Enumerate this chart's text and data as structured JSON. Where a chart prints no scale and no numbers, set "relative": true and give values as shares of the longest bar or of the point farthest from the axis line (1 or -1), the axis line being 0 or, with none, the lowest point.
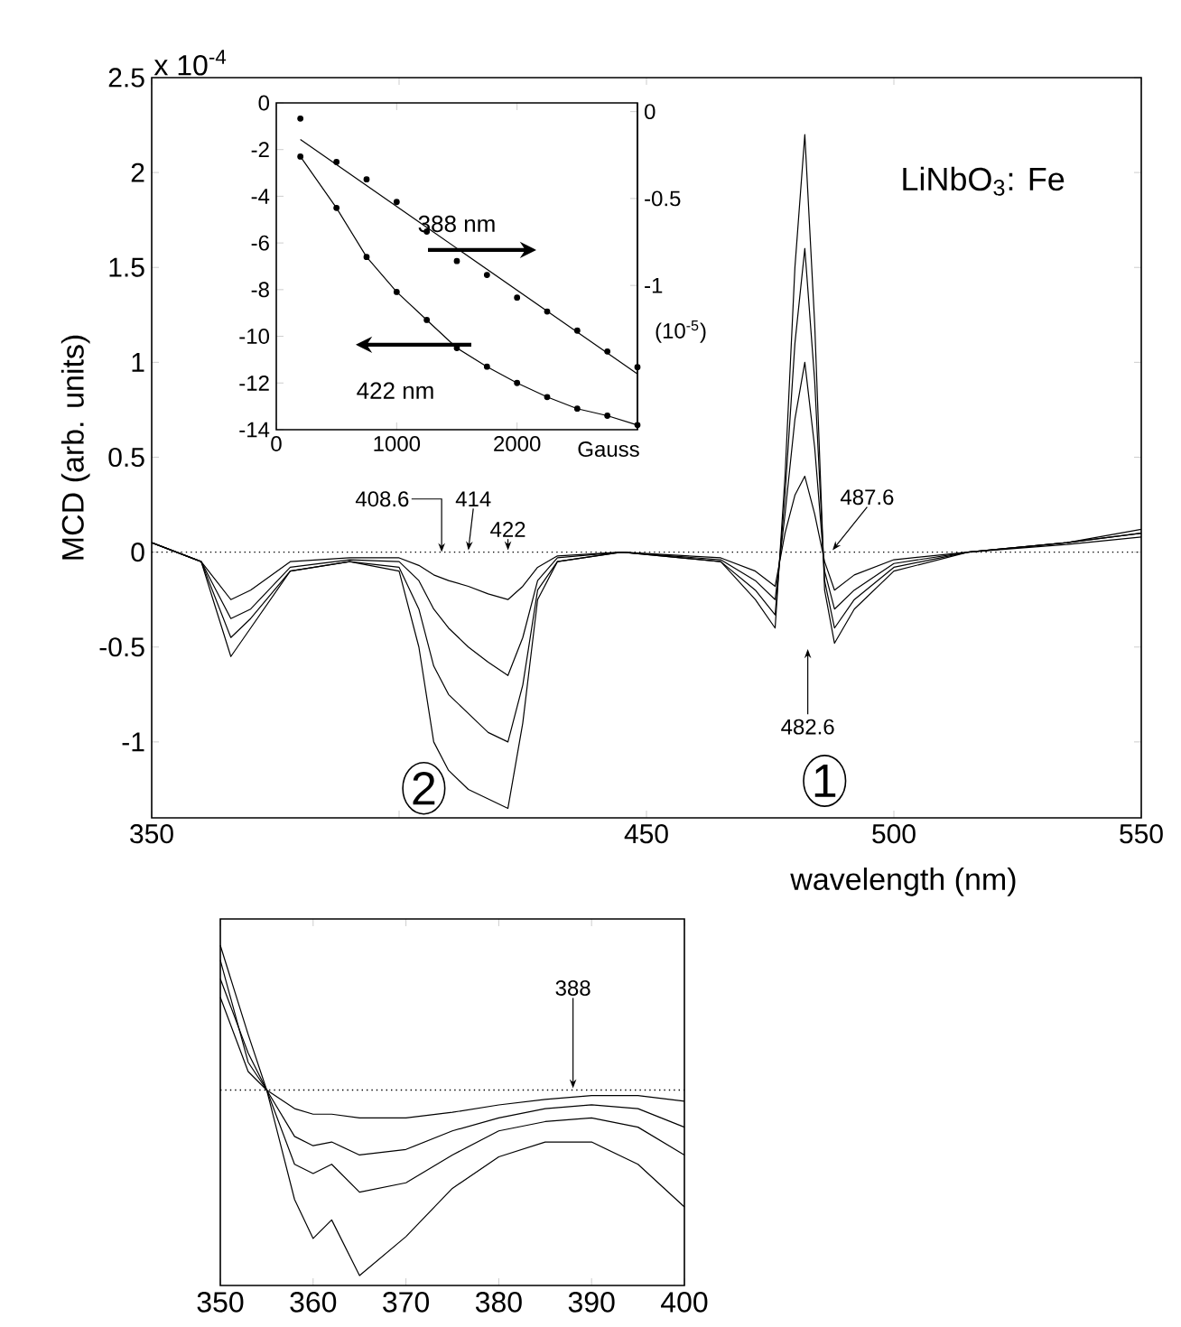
{
  "chart_data": [
    {
      "type": "line",
      "xlabel": "wavelength (nm)",
      "ylabel": "MCD (arb. units)",
      "xlim": [
        350,
        550
      ],
      "xticks": [
        350,
        {
          "value": 400,
          "label": null
        },
        450,
        500,
        550
      ],
      "ylim": [
        -1.4,
        2.5
      ],
      "yticks": [
        -1,
        -0.5,
        0,
        0.5,
        1,
        1.5,
        2,
        2.5
      ],
      "x": [
        350,
        355,
        360,
        363,
        366,
        370,
        378,
        390,
        400,
        404,
        407,
        410,
        414,
        418,
        422,
        425,
        428,
        432,
        445,
        465,
        472,
        476,
        478,
        480,
        482,
        484,
        486,
        488,
        492,
        500,
        515,
        535,
        550
      ],
      "series": [
        {
          "color": "#000000",
          "values": [
            0.05,
            0,
            -0.05,
            -0.3,
            -0.55,
            -0.4,
            -0.1,
            -0.05,
            -0.1,
            -0.5,
            -1.0,
            -1.15,
            -1.25,
            -1.3,
            -1.35,
            -0.9,
            -0.25,
            -0.05,
            0,
            -0.05,
            -0.25,
            -0.4,
            0.4,
            1.5,
            2.2,
            1.2,
            -0.2,
            -0.48,
            -0.3,
            -0.1,
            0,
            0.05,
            0.12
          ]
        },
        {
          "color": "#000000",
          "values": [
            0.05,
            0,
            -0.05,
            -0.25,
            -0.45,
            -0.35,
            -0.1,
            -0.05,
            -0.08,
            -0.3,
            -0.6,
            -0.75,
            -0.85,
            -0.95,
            -1.0,
            -0.7,
            -0.2,
            -0.05,
            0,
            -0.05,
            -0.2,
            -0.33,
            0.3,
            1.1,
            1.6,
            0.9,
            -0.15,
            -0.4,
            -0.25,
            -0.08,
            0,
            0.05,
            0.1
          ]
        },
        {
          "color": "#000000",
          "values": [
            0.05,
            0,
            -0.05,
            -0.2,
            -0.35,
            -0.3,
            -0.08,
            -0.04,
            -0.05,
            -0.15,
            -0.3,
            -0.4,
            -0.5,
            -0.58,
            -0.65,
            -0.45,
            -0.15,
            -0.03,
            0,
            -0.04,
            -0.15,
            -0.25,
            0.2,
            0.7,
            1.0,
            0.55,
            -0.1,
            -0.3,
            -0.2,
            -0.06,
            0,
            0.05,
            0.1
          ]
        },
        {
          "color": "#000000",
          "values": [
            0.05,
            0,
            -0.05,
            -0.15,
            -0.25,
            -0.2,
            -0.05,
            -0.03,
            -0.03,
            -0.07,
            -0.12,
            -0.15,
            -0.18,
            -0.22,
            -0.25,
            -0.18,
            -0.08,
            -0.02,
            0,
            -0.03,
            -0.1,
            -0.18,
            0.1,
            0.3,
            0.4,
            0.2,
            -0.05,
            -0.2,
            -0.12,
            -0.04,
            0,
            0.04,
            0.08
          ]
        }
      ],
      "ref_lines": [
        {
          "axis": "y",
          "value": 0,
          "line_style": "dotted",
          "color": "#000000"
        }
      ],
      "annotations": [
        "x 10$^{-4}$",
        "LiNbO$_{3}$: Fe",
        "2",
        "1",
        {
          "text": "408.6",
          "x": 408.6,
          "y": 0
        },
        {
          "text": "414",
          "x": 414,
          "y": 0
        },
        {
          "text": "422",
          "x": 422,
          "y": 0
        },
        {
          "text": "487.6",
          "x": 487.6,
          "y": 0
        },
        "482.6"
      ]
    },
    {
      "type": "line",
      "xlabel": "Gauss",
      "y2label": "(10$^{-5}$)",
      "xlim": [
        0,
        3000
      ],
      "xticks": [
        0,
        1000,
        2000
      ],
      "ylim": [
        -14,
        0
      ],
      "yticks": [
        0,
        -2,
        -4,
        -6,
        -8,
        -10,
        -12,
        -14
      ],
      "y2lim": [
        -1.83,
        0.05
      ],
      "y2ticks": [
        0,
        -0.5,
        -1
      ],
      "x": [
        200,
        500,
        750,
        1000,
        1250,
        1500,
        1750,
        2000,
        2250,
        2500,
        2750,
        3000
      ],
      "series": [
        {
          "type": "scatter",
          "axis": "y2",
          "marker": "circle",
          "color": "#000000",
          "values": [
            -0.04,
            -0.29,
            -0.39,
            -0.52,
            -0.69,
            -0.86,
            -0.94,
            -1.07,
            -1.15,
            -1.26,
            -1.38,
            -1.47
          ]
        },
        {
          "type": "line",
          "axis": "y2",
          "color": "#000000",
          "x": [
            200,
            3000
          ],
          "values": [
            -0.16,
            -1.51
          ]
        },
        {
          "type": "line",
          "marker": "circle",
          "color": "#000000",
          "values": [
            -2.3,
            -4.5,
            -6.6,
            -8.1,
            -9.3,
            -10.5,
            -11.3,
            -12.0,
            -12.6,
            -13.1,
            -13.4,
            -13.8
          ]
        }
      ],
      "annotations": [
        "388 nm",
        "422 nm"
      ]
    },
    {
      "type": "line",
      "relative": true,
      "tick_labels": "x",
      "xlim": [
        350,
        400
      ],
      "xticks": [
        350,
        360,
        370,
        380,
        390,
        400
      ],
      "x": [
        350,
        353,
        355,
        358,
        360,
        362,
        365,
        370,
        375,
        380,
        385,
        390,
        395,
        400
      ],
      "series": [
        {
          "color": "#000000",
          "values": [
            0.78,
            0.3,
            0,
            -0.59,
            -0.8,
            -0.7,
            -1,
            -0.79,
            -0.53,
            -0.36,
            -0.28,
            -0.28,
            -0.4,
            -0.63
          ]
        },
        {
          "color": "#000000",
          "values": [
            0.6,
            0.2,
            0,
            -0.4,
            -0.45,
            -0.4,
            -0.55,
            -0.5,
            -0.35,
            -0.22,
            -0.17,
            -0.15,
            -0.2,
            -0.35
          ]
        },
        {
          "color": "#000000",
          "values": [
            0.7,
            0.15,
            0,
            -0.25,
            -0.3,
            -0.28,
            -0.35,
            -0.32,
            -0.22,
            -0.15,
            -0.1,
            -0.08,
            -0.1,
            -0.2
          ]
        },
        {
          "color": "#000000",
          "values": [
            0.5,
            0.1,
            0,
            -0.1,
            -0.13,
            -0.13,
            -0.15,
            -0.15,
            -0.12,
            -0.08,
            -0.05,
            -0.03,
            -0.03,
            -0.06
          ]
        }
      ],
      "ref_lines": [
        {
          "axis": "y",
          "value": 0,
          "line_style": "dotted",
          "color": "#000000"
        }
      ],
      "annotations": [
        {
          "text": "388",
          "x": 388,
          "y": 0
        }
      ]
    }
  ]
}
